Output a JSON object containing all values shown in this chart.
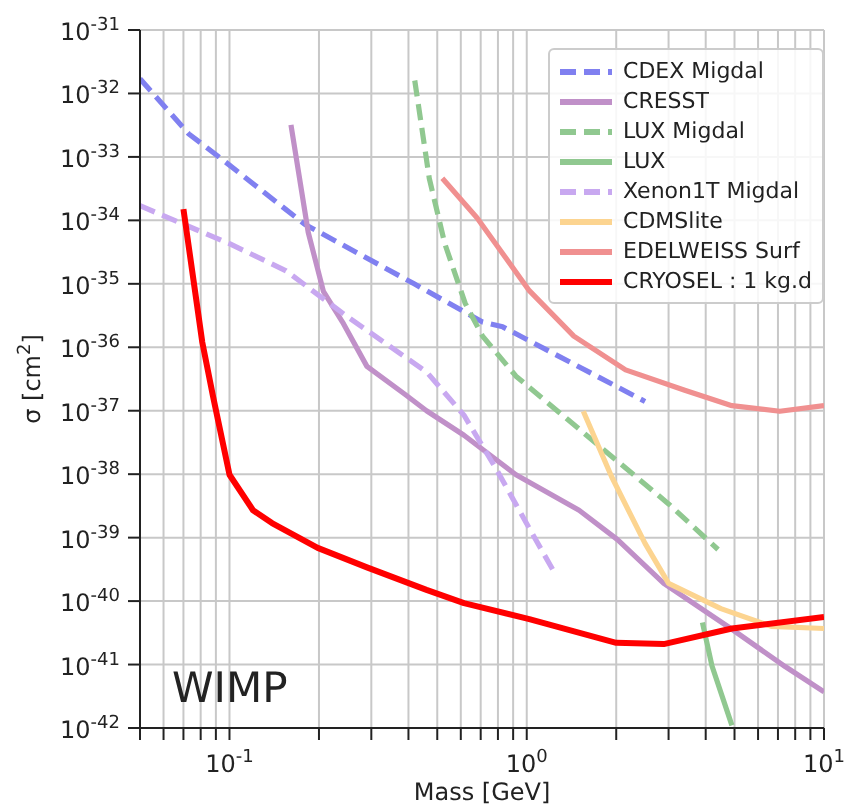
{
  "chart_data": {
    "type": "line",
    "xlabel": "Mass [GeV]",
    "ylabel": "σ [cm$^{2}$]",
    "log": "xy",
    "grid": true,
    "legend": "top right",
    "marker": "none",
    "xlim": [
      0.05,
      10
    ],
    "ylim": [
      1e-42,
      1e-31
    ],
    "xticks": [
      {
        "value": 0.05,
        "label": null
      },
      {
        "value": 0.06,
        "label": null
      },
      {
        "value": 0.07,
        "label": null
      },
      {
        "value": 0.08,
        "label": null
      },
      {
        "value": 0.09,
        "label": null
      },
      {
        "value": 0.1,
        "label": "10$^{-1}$"
      },
      {
        "value": 0.2,
        "label": null
      },
      {
        "value": 0.3,
        "label": null
      },
      {
        "value": 0.4,
        "label": null
      },
      {
        "value": 0.5,
        "label": null
      },
      {
        "value": 0.6,
        "label": null
      },
      {
        "value": 0.7,
        "label": null
      },
      {
        "value": 0.8,
        "label": null
      },
      {
        "value": 0.9,
        "label": null
      },
      {
        "value": 1,
        "label": "10$^{0}$"
      },
      {
        "value": 2,
        "label": null
      },
      {
        "value": 3,
        "label": null
      },
      {
        "value": 4,
        "label": null
      },
      {
        "value": 5,
        "label": null
      },
      {
        "value": 6,
        "label": null
      },
      {
        "value": 7,
        "label": null
      },
      {
        "value": 8,
        "label": null
      },
      {
        "value": 9,
        "label": null
      },
      {
        "value": 10,
        "label": "10$^{1}$"
      }
    ],
    "yticks": [
      {
        "value": 1e-42,
        "label": "10$^{-42}$"
      },
      {
        "value": 1e-41,
        "label": "10$^{-41}$"
      },
      {
        "value": 1e-40,
        "label": "10$^{-40}$"
      },
      {
        "value": 1e-39,
        "label": "10$^{-39}$"
      },
      {
        "value": 1e-38,
        "label": "10$^{-38}$"
      },
      {
        "value": 1e-37,
        "label": "10$^{-37}$"
      },
      {
        "value": 1e-36,
        "label": "10$^{-36}$"
      },
      {
        "value": 1e-35,
        "label": "10$^{-35}$"
      },
      {
        "value": 1e-34,
        "label": "10$^{-34}$"
      },
      {
        "value": 1e-33,
        "label": "10$^{-33}$"
      },
      {
        "value": 1e-32,
        "label": "10$^{-32}$"
      },
      {
        "value": 1e-31,
        "label": "10$^{-31}$"
      }
    ],
    "annotations": [
      "WIMP"
    ],
    "series": [
      {
        "name": "CDEX Migdal",
        "color": "#8080f0",
        "line_style": "dashed",
        "x": [
          0.05,
          0.073,
          0.094,
          0.179,
          0.418,
          0.71,
          0.83,
          2.5
        ],
        "values": [
          1.7e-32,
          2.3e-33,
          9.3e-34,
          8.7e-35,
          1e-35,
          2.5e-36,
          2.1e-36,
          1.4e-37
        ]
      },
      {
        "name": "CRESST",
        "color": "#c090c8",
        "line_style": "solid",
        "x": [
          0.161,
          0.184,
          0.207,
          0.24,
          0.29,
          0.39,
          0.46,
          0.615,
          0.92,
          1.5,
          2.02,
          2.89,
          4.9,
          7.4,
          10
        ],
        "values": [
          3.2e-33,
          6.5e-35,
          7.6e-36,
          2.5e-36,
          5e-37,
          1.8e-37,
          1e-37,
          4.1e-38,
          9.8e-39,
          2.7e-39,
          9.3e-40,
          1.9e-40,
          3.6e-41,
          9.3e-42,
          3.7e-42
        ]
      },
      {
        "name": "LUX Migdal",
        "color": "#90c890",
        "line_style": "dashed",
        "x": [
          0.42,
          0.47,
          0.53,
          0.62,
          0.71,
          0.92,
          2.02,
          3.0,
          4.4
        ],
        "values": [
          1.6e-32,
          4.6e-34,
          4.3e-35,
          5e-36,
          1.5e-36,
          3.5e-37,
          1.6e-38,
          3.4e-39,
          6.5e-40
        ]
      },
      {
        "name": "LUX",
        "color": "#90c890",
        "line_style": "solid",
        "x": [
          3.9,
          4.2,
          4.9
        ],
        "values": [
          4.6e-41,
          9.5e-42,
          1.1e-42
        ]
      },
      {
        "name": "Xenon1T Migdal",
        "color": "#c8a8f0",
        "line_style": "dashed",
        "x": [
          0.05,
          0.07,
          0.1,
          0.155,
          0.25,
          0.46,
          0.615,
          0.79,
          1.02,
          1.24
        ],
        "values": [
          1.7e-34,
          8.7e-35,
          4.3e-35,
          1.6e-35,
          3e-36,
          4.1e-37,
          8.5e-38,
          1.2e-38,
          1.4e-39,
          2.8e-40
        ]
      },
      {
        "name": "CDMSlite",
        "color": "#fcd490",
        "line_style": "solid",
        "x": [
          1.55,
          1.93,
          2.5,
          3.0,
          4.5,
          6.65,
          10
        ],
        "values": [
          9.8e-38,
          9.1e-39,
          8.1e-40,
          1.9e-40,
          7.6e-41,
          4e-41,
          3.7e-41
        ]
      },
      {
        "name": "EDELWEISS Surf",
        "color": "#f09090",
        "line_style": "solid",
        "x": [
          0.52,
          0.68,
          1.02,
          1.44,
          2.15,
          3.4,
          4.9,
          7.1,
          10
        ],
        "values": [
          4.6e-34,
          1.1e-34,
          7.8e-36,
          1.5e-36,
          4.4e-37,
          2.1e-37,
          1.2e-37,
          9.8e-38,
          1.2e-37
        ]
      },
      {
        "name": "CRYOSEL : 1 kg.d",
        "color": "#ff0000",
        "line_style": "solid",
        "x": [
          0.07,
          0.081,
          0.088,
          0.1,
          0.12,
          0.139,
          0.198,
          0.29,
          0.46,
          0.615,
          1.02,
          2.0,
          2.89,
          4.9,
          10
        ],
        "values": [
          1.5e-34,
          1.2e-36,
          1.7e-37,
          9.8e-39,
          2.7e-39,
          1.7e-39,
          6.9e-40,
          3.4e-40,
          1.5e-40,
          9.3e-41,
          5.2e-41,
          2.2e-41,
          2.1e-41,
          3.7e-41,
          5.6e-41
        ]
      }
    ]
  }
}
